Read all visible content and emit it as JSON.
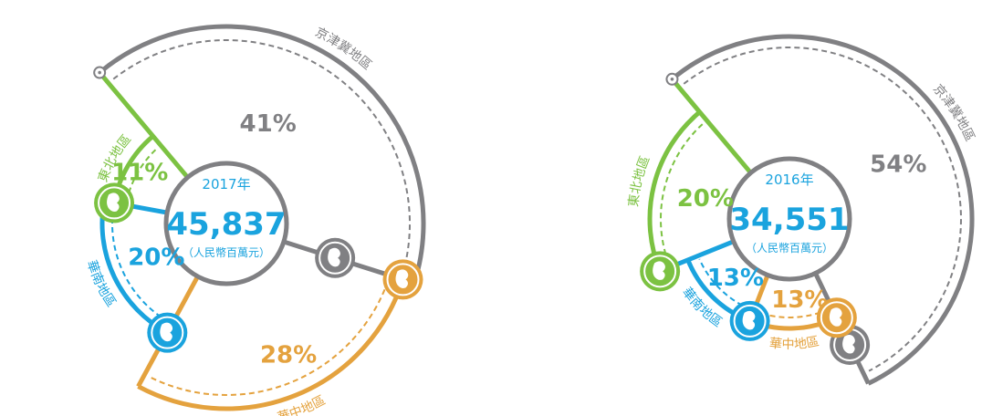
{
  "colors": {
    "gray": "#808083",
    "orange": "#E4A23E",
    "blue": "#1AA3DE",
    "green": "#7CC242",
    "white": "#ffffff"
  },
  "chart_data": [
    {
      "type": "pie",
      "year": "2017年",
      "total": "45,837",
      "unit": "（人民幣百萬元）",
      "slices": [
        {
          "region": "京津冀地區",
          "pct_label": "41%",
          "value": 41,
          "color": "gray",
          "icon": "region-map-icon"
        },
        {
          "region": "華中地區",
          "pct_label": "28%",
          "value": 28,
          "color": "orange",
          "icon": "region-map-icon"
        },
        {
          "region": "華南地區",
          "pct_label": "20%",
          "value": 20,
          "color": "blue",
          "icon": "region-map-icon"
        },
        {
          "region": "東北地區",
          "pct_label": "11%",
          "value": 11,
          "color": "green",
          "icon": "region-map-icon"
        }
      ]
    },
    {
      "type": "pie",
      "year": "2016年",
      "total": "34,551",
      "unit": "（人民幣百萬元）",
      "slices": [
        {
          "region": "京津冀地區",
          "pct_label": "54%",
          "value": 54,
          "color": "gray",
          "icon": "region-map-icon"
        },
        {
          "region": "華中地區",
          "pct_label": "13%",
          "value": 13,
          "color": "orange",
          "icon": "region-map-icon"
        },
        {
          "region": "華南地區",
          "pct_label": "13%",
          "value": 13,
          "color": "blue",
          "icon": "region-map-icon"
        },
        {
          "region": "東北地區",
          "pct_label": "20%",
          "value": 20,
          "color": "green",
          "icon": "region-map-icon"
        }
      ]
    }
  ]
}
